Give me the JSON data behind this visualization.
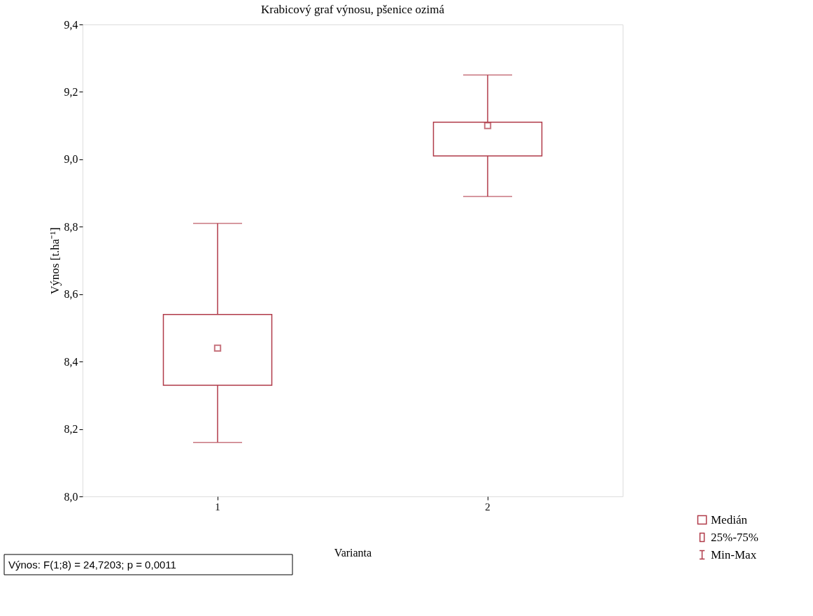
{
  "chart_data": {
    "type": "box",
    "title": "Krabicový graf výnosu, pšenice ozimá",
    "xlabel": "Varianta",
    "ylabel": "Výnos [t.ha⁻¹]",
    "categories": [
      "1",
      "2"
    ],
    "series": [
      {
        "color": "#b03a48",
        "boxes": [
          {
            "low": 8.16,
            "q1": 8.33,
            "median": 8.44,
            "q3": 8.54,
            "high": 8.81
          },
          {
            "low": 8.89,
            "q1": 9.01,
            "median": 9.1,
            "q3": 9.11,
            "high": 9.25
          }
        ]
      }
    ],
    "ylim": [
      8.0,
      9.4
    ],
    "yticks": [
      {
        "value": 8.0,
        "label": "8,0"
      },
      {
        "value": 8.2,
        "label": "8,2"
      },
      {
        "value": 8.4,
        "label": "8,4"
      },
      {
        "value": 8.6,
        "label": "8,6"
      },
      {
        "value": 8.8,
        "label": "8,8"
      },
      {
        "value": 9.0,
        "label": "9,0"
      },
      {
        "value": 9.2,
        "label": "9,2"
      },
      {
        "value": 9.4,
        "label": "9,4"
      }
    ],
    "grid": false,
    "annotations": [
      "Výnos:   F(1;8) = 24,7203; p = 0,0011",
      "Medián",
      "25%-75%",
      "Min-Max"
    ]
  }
}
